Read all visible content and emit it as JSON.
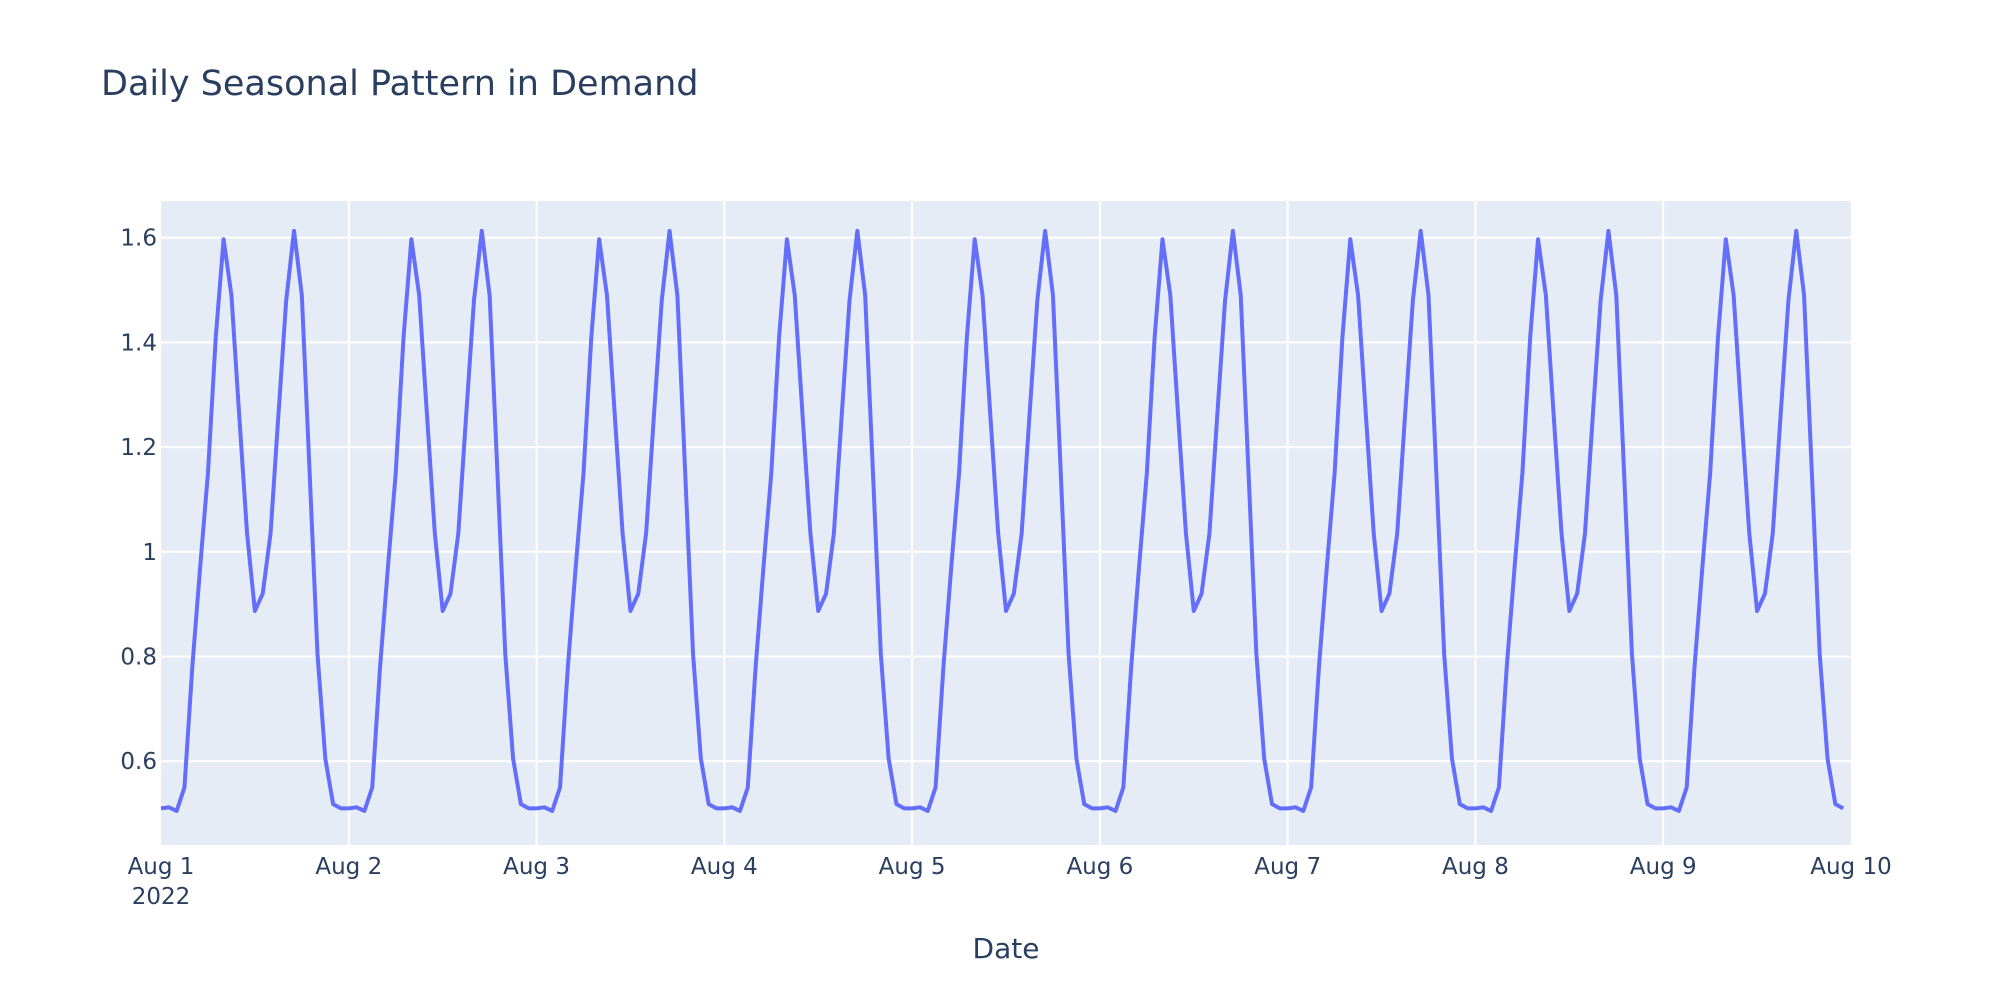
{
  "chart_data": {
    "type": "line",
    "title": "Daily Seasonal Pattern in Demand",
    "xlabel": "Date",
    "ylabel": "",
    "x_start": "2022-08-01T00:00",
    "x_step_hours": 1,
    "x_range": [
      "2022-08-01",
      "2022-08-10"
    ],
    "ylim": [
      0.44,
      1.67
    ],
    "grid": true,
    "line_color": "#636efa",
    "plot_background": "#e5ecf6",
    "y_ticks": [
      {
        "value": 0.6,
        "label": "0.6"
      },
      {
        "value": 0.8,
        "label": "0.8"
      },
      {
        "value": 1.0,
        "label": "1"
      },
      {
        "value": 1.2,
        "label": "1.2"
      },
      {
        "value": 1.4,
        "label": "1.4"
      },
      {
        "value": 1.6,
        "label": "1.6"
      }
    ],
    "x_ticks": [
      {
        "date": "2022-08-01",
        "label": "Aug 1",
        "sublabel": "2022"
      },
      {
        "date": "2022-08-02",
        "label": "Aug 2",
        "sublabel": ""
      },
      {
        "date": "2022-08-03",
        "label": "Aug 3",
        "sublabel": ""
      },
      {
        "date": "2022-08-04",
        "label": "Aug 4",
        "sublabel": ""
      },
      {
        "date": "2022-08-05",
        "label": "Aug 5",
        "sublabel": ""
      },
      {
        "date": "2022-08-06",
        "label": "Aug 6",
        "sublabel": ""
      },
      {
        "date": "2022-08-07",
        "label": "Aug 7",
        "sublabel": ""
      },
      {
        "date": "2022-08-08",
        "label": "Aug 8",
        "sublabel": ""
      },
      {
        "date": "2022-08-09",
        "label": "Aug 9",
        "sublabel": ""
      },
      {
        "date": "2022-08-10",
        "label": "Aug 10",
        "sublabel": ""
      }
    ],
    "series": [
      {
        "daily_pattern": [
          0.51,
          0.512,
          0.505,
          0.55,
          0.78,
          0.97,
          1.15,
          1.41,
          1.597,
          1.49,
          1.26,
          1.035,
          0.887,
          0.92,
          1.035,
          1.26,
          1.48,
          1.613,
          1.49,
          1.15,
          0.805,
          0.605,
          0.518,
          0.51
        ],
        "days": 9
      }
    ]
  }
}
